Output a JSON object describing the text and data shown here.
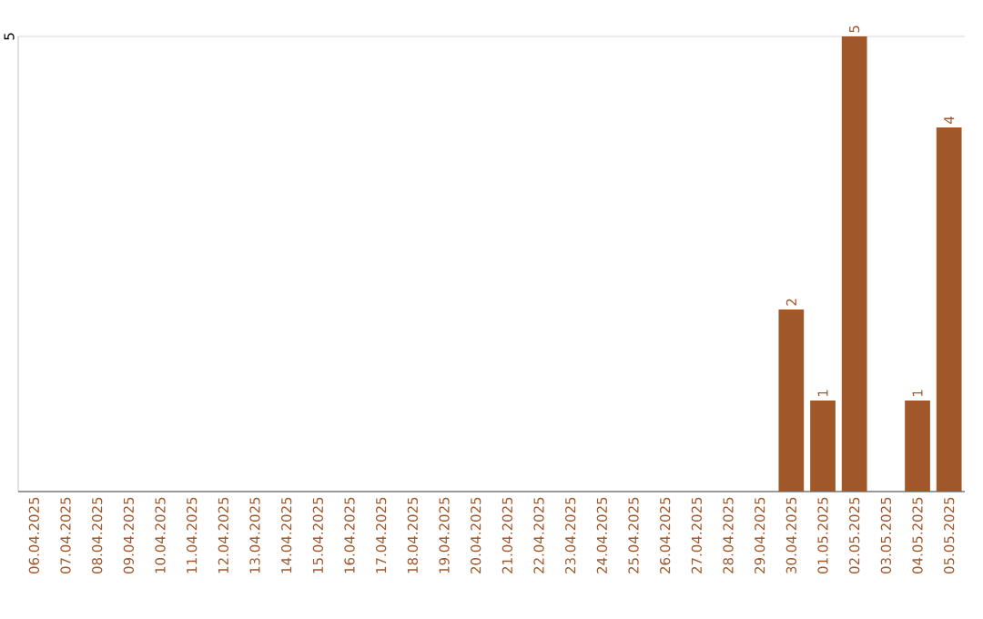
{
  "chart_data": {
    "type": "bar",
    "ylim": [
      0,
      5
    ],
    "categories": [
      "06.04.2025",
      "07.04.2025",
      "08.04.2025",
      "09.04.2025",
      "10.04.2025",
      "11.04.2025",
      "12.04.2025",
      "13.04.2025",
      "14.04.2025",
      "15.04.2025",
      "16.04.2025",
      "17.04.2025",
      "18.04.2025",
      "19.04.2025",
      "20.04.2025",
      "21.04.2025",
      "22.04.2025",
      "23.04.2025",
      "24.04.2025",
      "25.04.2025",
      "26.04.2025",
      "27.04.2025",
      "28.04.2025",
      "29.04.2025",
      "30.04.2025",
      "01.05.2025",
      "02.05.2025",
      "03.05.2025",
      "04.05.2025",
      "05.05.2025"
    ],
    "values": [
      null,
      null,
      null,
      null,
      null,
      null,
      null,
      null,
      null,
      null,
      null,
      null,
      null,
      null,
      null,
      null,
      null,
      null,
      null,
      null,
      null,
      null,
      null,
      null,
      2,
      1,
      5,
      null,
      1,
      4
    ],
    "value_labels": [
      null,
      null,
      null,
      null,
      null,
      null,
      null,
      null,
      null,
      null,
      null,
      null,
      null,
      null,
      null,
      null,
      null,
      null,
      null,
      null,
      null,
      null,
      null,
      null,
      "2",
      "1",
      "5",
      null,
      "1",
      "4"
    ],
    "color": "#a0582b",
    "ref_lines": [
      {
        "axis": "y",
        "value": 5,
        "label": "5",
        "color": "#cccccc"
      }
    ]
  }
}
